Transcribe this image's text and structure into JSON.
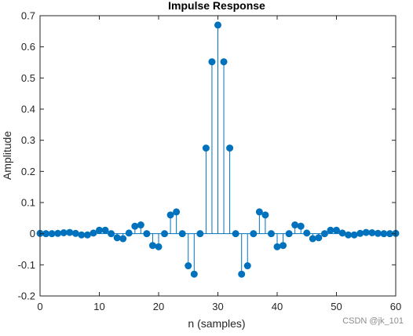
{
  "watermark": "CSDN @jk_101",
  "colors": {
    "stem": "#0072BD",
    "axis": "#262626",
    "background": "#ffffff"
  },
  "chart_data": {
    "type": "stem",
    "title": "Impulse Response",
    "xlabel": "n (samples)",
    "ylabel": "Amplitude",
    "xlim": [
      0,
      60
    ],
    "ylim": [
      -0.2,
      0.7
    ],
    "grid": false,
    "x_ticks": [
      0,
      10,
      20,
      30,
      40,
      50,
      60
    ],
    "x_tick_labels": [
      "0",
      "10",
      "20",
      "30",
      "40",
      "50",
      "60"
    ],
    "y_ticks": [
      -0.2,
      -0.1,
      0,
      0.1,
      0.2,
      0.3,
      0.4,
      0.5,
      0.6,
      0.7
    ],
    "y_tick_labels": [
      "-0.2",
      "-0.1",
      "0",
      "0.1",
      "0.2",
      "0.3",
      "0.4",
      "0.5",
      "0.6",
      "0.7"
    ],
    "x": [
      0,
      1,
      2,
      3,
      4,
      5,
      6,
      7,
      8,
      9,
      10,
      11,
      12,
      13,
      14,
      15,
      16,
      17,
      18,
      19,
      20,
      21,
      22,
      23,
      24,
      25,
      26,
      27,
      28,
      29,
      30,
      31,
      32,
      33,
      34,
      35,
      36,
      37,
      38,
      39,
      40,
      41,
      42,
      43,
      44,
      45,
      46,
      47,
      48,
      49,
      50,
      51,
      52,
      53,
      54,
      55,
      56,
      57,
      58,
      59,
      60
    ],
    "values": [
      0.001,
      0,
      0,
      0.001,
      0.003,
      0.004,
      0.001,
      -0.004,
      -0.004,
      0.002,
      0.011,
      0.011,
      0,
      -0.013,
      -0.016,
      0.002,
      0.024,
      0.028,
      0,
      -0.038,
      -0.042,
      0,
      0.06,
      0.07,
      0,
      -0.103,
      -0.13,
      0,
      0.275,
      0.552,
      0.67,
      0.552,
      0.275,
      0,
      -0.13,
      -0.103,
      0,
      0.07,
      0.06,
      0,
      -0.042,
      -0.038,
      0,
      0.028,
      0.024,
      0.002,
      -0.016,
      -0.013,
      0,
      0.011,
      0.011,
      0.002,
      -0.004,
      -0.004,
      0.001,
      0.004,
      0.003,
      0.001,
      0,
      0,
      0.001
    ]
  }
}
